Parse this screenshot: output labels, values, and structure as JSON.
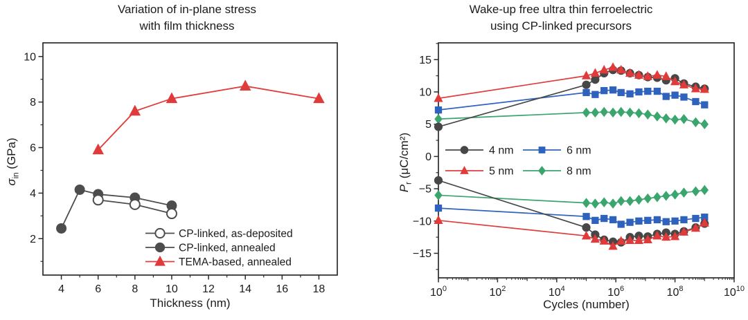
{
  "figure": {
    "background": "#ffffff",
    "text_color": "#1b1b1b",
    "axis_color": "#2a2a2a"
  },
  "chart_data": [
    {
      "type": "line",
      "title_lines": [
        "Variation of in-plane stress",
        "with film thickness"
      ],
      "xlabel": "Thickness (nm)",
      "ylabel": {
        "symbol": "σ",
        "subscript": "in",
        "unit": " (GPa)"
      },
      "xscale": "linear",
      "xlim": [
        3,
        19
      ],
      "ylim": [
        0.4,
        10.6
      ],
      "xticks": [
        4,
        6,
        8,
        10,
        12,
        14,
        16,
        18
      ],
      "yticks": [
        2,
        4,
        6,
        8,
        10
      ],
      "xminor": 1,
      "yminor": 1,
      "grid": false,
      "legend": {
        "position": "inside-bottom-right",
        "columns": 1,
        "entries": [
          {
            "label": "CP-linked, as-deposited",
            "marker": "circle-open",
            "color": "#4d4d4d"
          },
          {
            "label": "CP-linked, annealed",
            "marker": "circle",
            "color": "#4d4d4d"
          },
          {
            "label": "TEMA-based, annealed",
            "marker": "triangle",
            "color": "#e03b3a"
          }
        ]
      },
      "series": [
        {
          "name": "CP-linked, annealed",
          "marker": "circle",
          "color": "#4d4d4d",
          "x": [
            4,
            5,
            6,
            8,
            10
          ],
          "y": [
            2.45,
            4.15,
            3.95,
            3.8,
            3.45
          ]
        },
        {
          "name": "CP-linked, as-deposited",
          "marker": "circle-open",
          "color": "#4d4d4d",
          "x": [
            6,
            8,
            10
          ],
          "y": [
            3.7,
            3.5,
            3.1
          ]
        },
        {
          "name": "TEMA-based, annealed",
          "marker": "triangle",
          "color": "#e03b3a",
          "x": [
            6,
            8,
            10,
            14,
            18
          ],
          "y": [
            5.9,
            7.6,
            8.15,
            8.7,
            8.15
          ]
        }
      ]
    },
    {
      "type": "line",
      "title_lines": [
        "Wake-up free ultra thin ferroelectric",
        "using CP-linked precursors"
      ],
      "xlabel": "Cycles (number)",
      "ylabel": {
        "symbol": "P",
        "subscript": "r",
        "unit": " (μC/cm²)"
      },
      "xscale": "log",
      "xlim_exp": [
        0,
        10
      ],
      "ylim": [
        -18.8,
        17.6
      ],
      "xticks_exp": [
        0,
        2,
        4,
        6,
        8,
        10
      ],
      "yticks": [
        -15,
        -10,
        -5,
        0,
        5,
        10,
        15
      ],
      "yminor": 2.5,
      "grid": false,
      "legend": {
        "position": "inside-middle-left",
        "columns": 2,
        "entries": [
          {
            "label": "4 nm",
            "marker": "circle",
            "color": "#474747"
          },
          {
            "label": "6 nm",
            "marker": "square",
            "color": "#2e62bd"
          },
          {
            "label": "5 nm",
            "marker": "triangle",
            "color": "#e03b3a"
          },
          {
            "label": "8 nm",
            "marker": "diamond",
            "color": "#3aa56d"
          }
        ]
      },
      "x_cycles": [
        1,
        100000.0,
        200000.0,
        400000.0,
        800000.0,
        1500000.0,
        3000000.0,
        6000000.0,
        12000000.0,
        25000000.0,
        50000000.0,
        100000000.0,
        200000000.0,
        500000000.0,
        1000000000.0
      ],
      "series": [
        {
          "name": "8 nm +Pr",
          "marker": "diamond",
          "color": "#3aa56d",
          "y": [
            5.8,
            6.8,
            6.8,
            6.9,
            6.8,
            6.9,
            6.8,
            6.7,
            6.5,
            6.2,
            5.9,
            5.7,
            5.8,
            5.3,
            5.0
          ]
        },
        {
          "name": "8 nm -Pr",
          "marker": "diamond",
          "color": "#3aa56d",
          "y": [
            -6.0,
            -7.2,
            -7.3,
            -7.1,
            -7.3,
            -6.9,
            -6.9,
            -6.7,
            -6.5,
            -6.3,
            -6.1,
            -5.9,
            -5.6,
            -5.4,
            -5.2
          ]
        },
        {
          "name": "6 nm +Pr",
          "marker": "square",
          "color": "#2e62bd",
          "y": [
            7.2,
            9.9,
            9.6,
            10.2,
            10.3,
            9.9,
            9.7,
            10.0,
            10.1,
            10.1,
            9.3,
            9.5,
            9.2,
            8.5,
            8.0
          ]
        },
        {
          "name": "6 nm -Pr",
          "marker": "square",
          "color": "#2e62bd",
          "y": [
            -8.0,
            -9.3,
            -9.9,
            -9.6,
            -9.8,
            -10.5,
            -10.2,
            -10.0,
            -9.9,
            -9.8,
            -10.1,
            -10.0,
            -9.8,
            -9.6,
            -9.4
          ]
        },
        {
          "name": "4 nm +Pr",
          "marker": "circle",
          "color": "#474747",
          "y": [
            4.6,
            11.1,
            11.9,
            12.9,
            13.4,
            13.3,
            12.9,
            12.6,
            12.3,
            12.2,
            11.8,
            12.1,
            11.3,
            10.8,
            10.5
          ]
        },
        {
          "name": "4 nm -Pr",
          "marker": "circle",
          "color": "#474747",
          "y": [
            -3.7,
            -11.0,
            -12.1,
            -12.9,
            -13.2,
            -13.3,
            -12.5,
            -12.3,
            -12.4,
            -12.0,
            -11.8,
            -12.0,
            -11.6,
            -11.0,
            -10.4
          ]
        },
        {
          "name": "5 nm +Pr",
          "marker": "triangle",
          "color": "#e03b3a",
          "y": [
            9.0,
            12.5,
            12.9,
            13.4,
            13.8,
            13.4,
            12.9,
            12.6,
            12.4,
            12.6,
            12.4,
            11.6,
            11.1,
            10.5,
            10.4
          ]
        },
        {
          "name": "5 nm -Pr",
          "marker": "triangle",
          "color": "#e03b3a",
          "y": [
            -9.9,
            -12.3,
            -12.8,
            -13.1,
            -13.9,
            -13.1,
            -13.0,
            -13.0,
            -12.9,
            -12.3,
            -12.5,
            -12.4,
            -11.7,
            -11.1,
            -10.3
          ]
        }
      ]
    }
  ]
}
